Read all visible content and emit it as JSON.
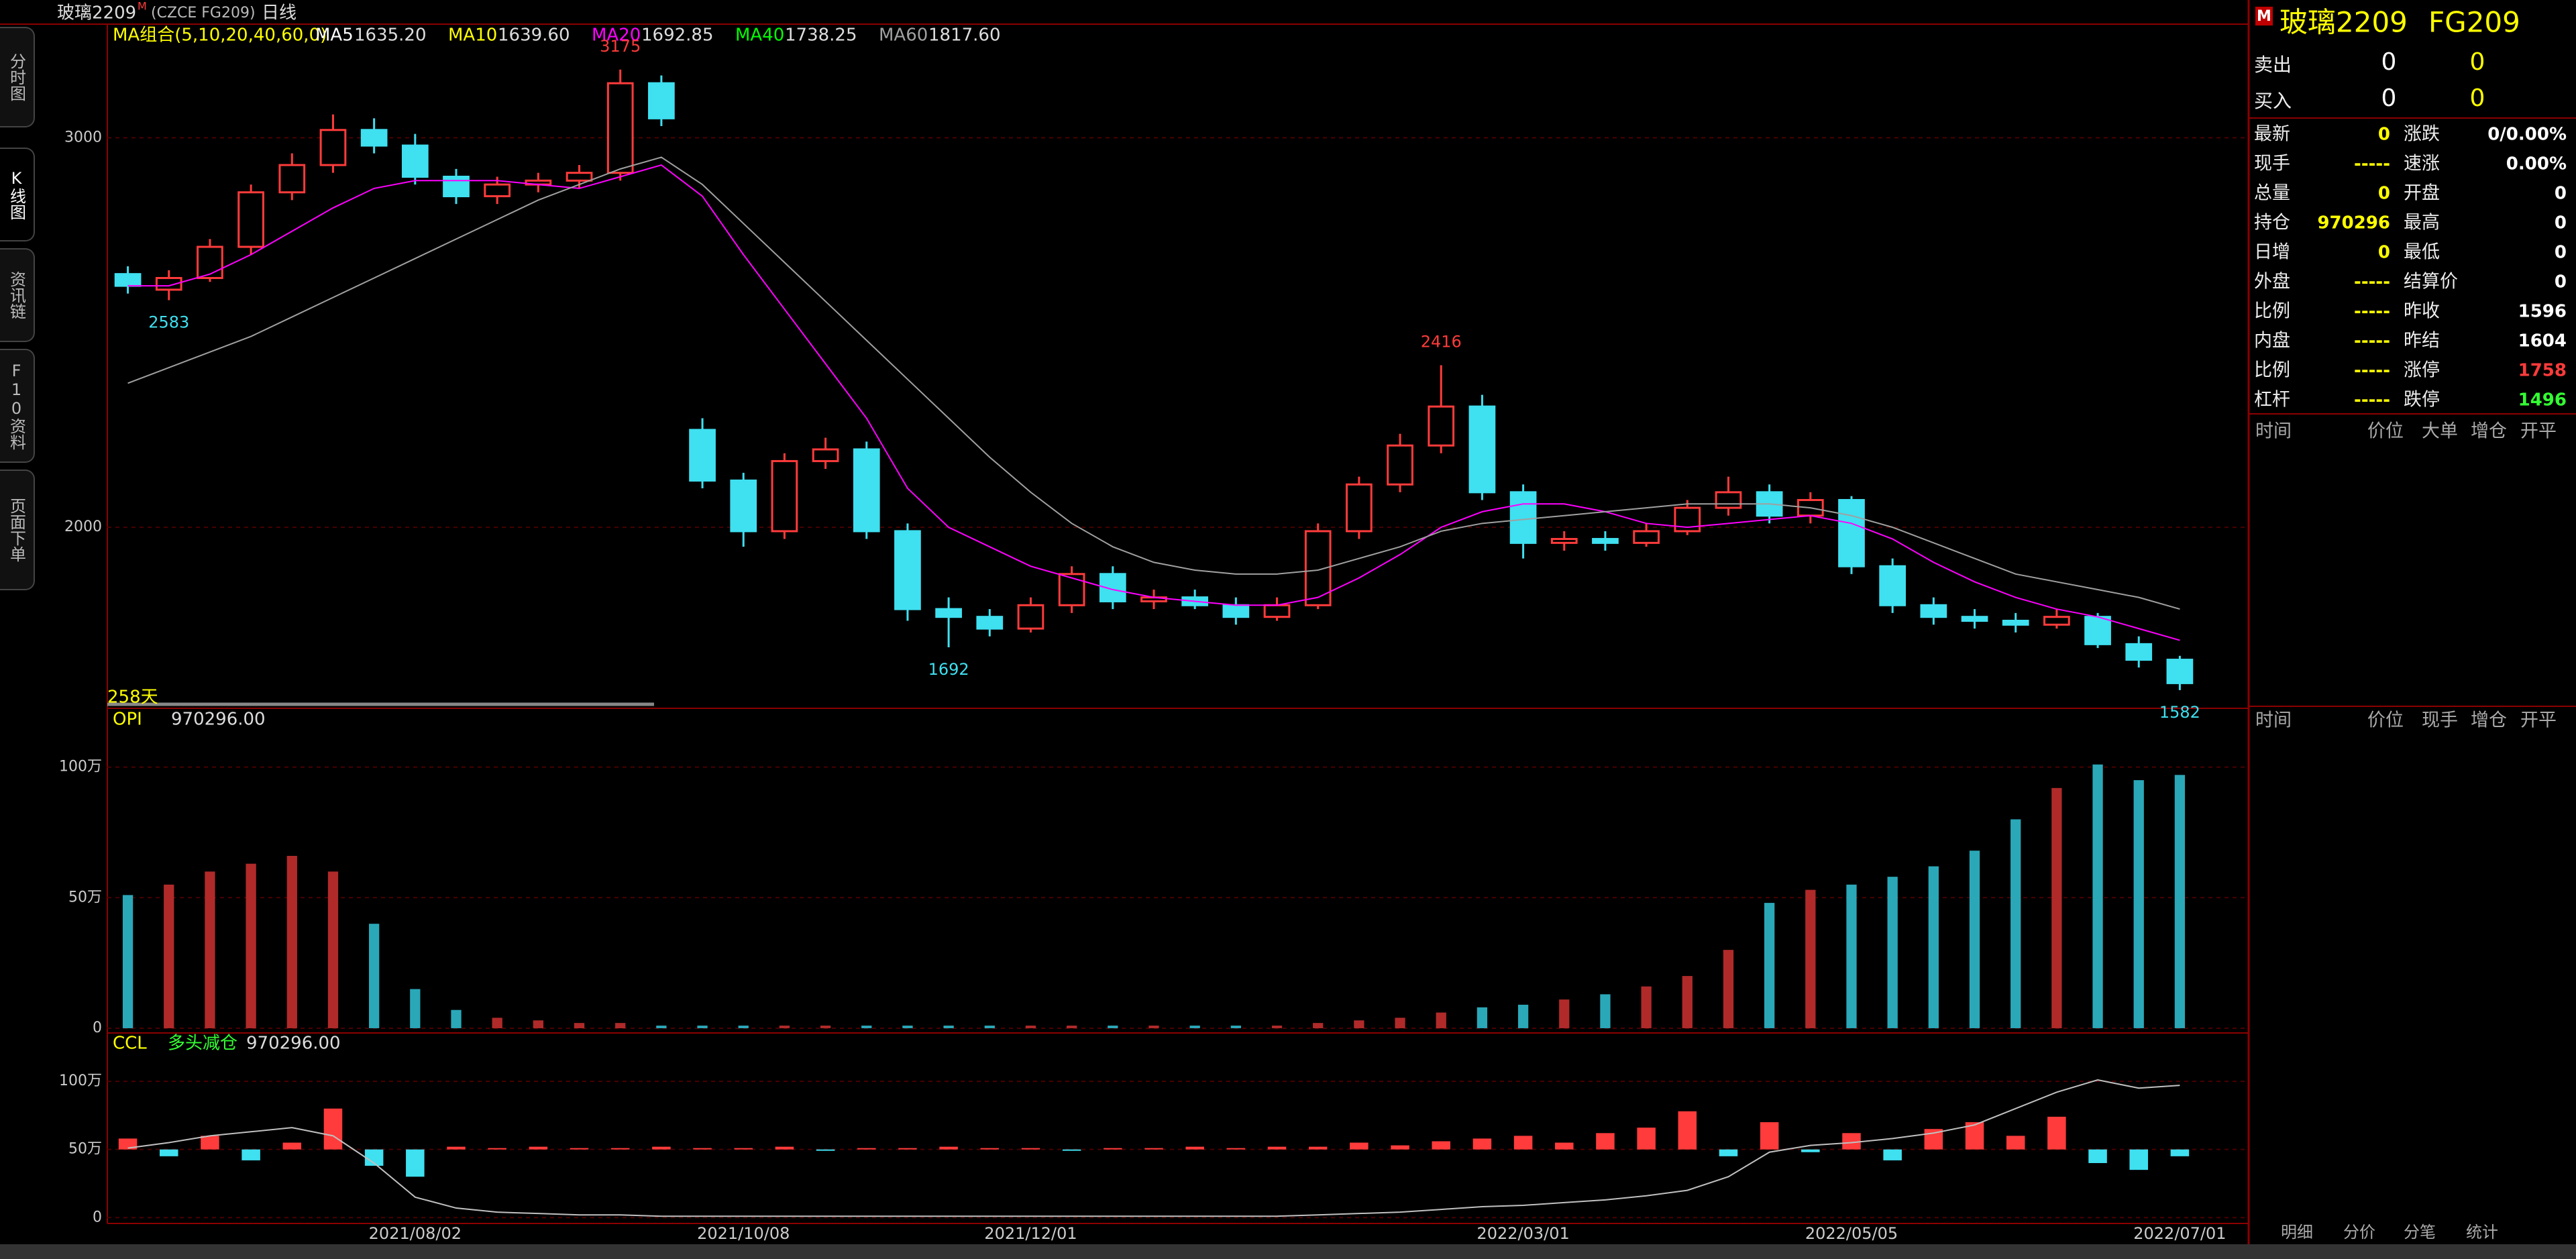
{
  "header": {
    "name": "玻璃2209",
    "mark": "M",
    "code": "(CZCE FG209)",
    "period": "日线"
  },
  "sidebar": [
    "分时图",
    "K线图",
    "资讯链",
    "F10资料",
    "页面下单"
  ],
  "chart_data": {
    "type": "candlestick",
    "legend_title": "MA组合(5,10,20,40,60,0)",
    "ma": [
      {
        "name": "MA5",
        "color": "#ffffff",
        "label": "1635.20"
      },
      {
        "name": "MA10",
        "color": "#ffff00",
        "label": "1639.60"
      },
      {
        "name": "MA20",
        "color": "#ff00ff",
        "label": "1692.85",
        "values": [
          2620,
          2620,
          2650,
          2700,
          2760,
          2820,
          2870,
          2890,
          2890,
          2890,
          2880,
          2870,
          2900,
          2930,
          2850,
          2700,
          2560,
          2420,
          2280,
          2100,
          2000,
          1950,
          1900,
          1870,
          1840,
          1820,
          1810,
          1800,
          1800,
          1820,
          1870,
          1930,
          2000,
          2040,
          2060,
          2060,
          2040,
          2010,
          2000,
          2010,
          2020,
          2030,
          2010,
          1970,
          1910,
          1860,
          1820,
          1790,
          1770,
          1740,
          1710
        ]
      },
      {
        "name": "MA40",
        "color": "#00ff00",
        "label": "1738.25"
      },
      {
        "name": "MA60",
        "color": "#a0a0a0",
        "label": "1817.60",
        "values": [
          2370,
          2410,
          2450,
          2490,
          2540,
          2590,
          2640,
          2690,
          2740,
          2790,
          2840,
          2880,
          2920,
          2950,
          2880,
          2780,
          2680,
          2580,
          2480,
          2380,
          2280,
          2180,
          2090,
          2010,
          1950,
          1910,
          1890,
          1880,
          1880,
          1890,
          1920,
          1950,
          1990,
          2010,
          2020,
          2030,
          2040,
          2050,
          2060,
          2060,
          2060,
          2050,
          2030,
          2000,
          1960,
          1920,
          1880,
          1860,
          1840,
          1820,
          1790
        ]
      }
    ],
    "categories": [
      null,
      null,
      null,
      null,
      null,
      null,
      null,
      "2021/08/02",
      null,
      null,
      null,
      null,
      null,
      null,
      null,
      "2021/10/08",
      null,
      null,
      null,
      null,
      null,
      null,
      "2021/12/01",
      null,
      null,
      null,
      null,
      null,
      null,
      null,
      null,
      null,
      null,
      null,
      "2022/03/01",
      null,
      null,
      null,
      null,
      null,
      null,
      null,
      "2022/05/05",
      null,
      null,
      null,
      null,
      null,
      null,
      null,
      "2022/07/01"
    ],
    "open": [
      2650,
      2610,
      2640,
      2720,
      2860,
      2930,
      3020,
      2980,
      2900,
      2850,
      2880,
      2890,
      2910,
      3140,
      2250,
      2120,
      1990,
      2170,
      2200,
      1990,
      1790,
      1770,
      1740,
      1800,
      1880,
      1810,
      1820,
      1800,
      1770,
      1800,
      1990,
      2110,
      2210,
      2310,
      2090,
      1960,
      1970,
      1960,
      1990,
      2050,
      2090,
      2030,
      2070,
      1900,
      1800,
      1770,
      1760,
      1750,
      1770,
      1700,
      1660
    ],
    "high": [
      2670,
      2660,
      2740,
      2880,
      2960,
      3060,
      3050,
      3010,
      2920,
      2900,
      2910,
      2930,
      3175,
      3160,
      2280,
      2140,
      2190,
      2230,
      2220,
      2010,
      1820,
      1790,
      1820,
      1900,
      1900,
      1840,
      1840,
      1820,
      1820,
      2010,
      2130,
      2240,
      2416,
      2340,
      2110,
      1990,
      1990,
      2010,
      2070,
      2130,
      2110,
      2090,
      2080,
      1920,
      1820,
      1790,
      1780,
      1790,
      1780,
      1720,
      1670
    ],
    "low": [
      2600,
      2583,
      2630,
      2700,
      2840,
      2910,
      2960,
      2880,
      2830,
      2830,
      2860,
      2870,
      2890,
      3030,
      2100,
      1950,
      1970,
      2150,
      1970,
      1760,
      1692,
      1720,
      1730,
      1780,
      1790,
      1790,
      1790,
      1750,
      1760,
      1790,
      1970,
      2090,
      2190,
      2070,
      1920,
      1940,
      1940,
      1950,
      1980,
      2030,
      2010,
      2010,
      1880,
      1780,
      1750,
      1740,
      1730,
      1740,
      1690,
      1640,
      1582
    ],
    "close": [
      2620,
      2640,
      2720,
      2860,
      2930,
      3020,
      2980,
      2900,
      2850,
      2880,
      2890,
      2910,
      3140,
      3050,
      2120,
      1990,
      2170,
      2200,
      1990,
      1790,
      1770,
      1740,
      1800,
      1880,
      1810,
      1820,
      1800,
      1770,
      1800,
      1990,
      2110,
      2210,
      2310,
      2090,
      1960,
      1970,
      1960,
      1990,
      2050,
      2090,
      2030,
      2070,
      1900,
      1800,
      1770,
      1760,
      1750,
      1770,
      1700,
      1660,
      1600
    ],
    "up_color": "#ff3b3b",
    "down_color": "#3fe0f0",
    "ylim": [
      1537,
      3290
    ],
    "yticks": [
      2000,
      3000
    ],
    "grid": true,
    "range_label": "258天",
    "opi": {
      "name": "OPI",
      "label": "970296.00",
      "values": [
        51,
        55,
        60,
        63,
        66,
        60,
        40,
        15,
        7,
        4,
        3,
        2,
        2,
        1,
        1,
        1,
        1,
        1,
        1,
        1,
        1,
        1,
        1,
        1,
        1,
        1,
        1,
        1,
        1,
        2,
        3,
        4,
        6,
        8,
        9,
        11,
        13,
        16,
        20,
        30,
        48,
        53,
        55,
        58,
        62,
        68,
        80,
        92,
        101,
        95,
        97
      ],
      "ylim": [
        -1.3,
        122
      ],
      "yticks": [
        0,
        {
          "value": 50,
          "label": "50万"
        },
        {
          "value": 100,
          "label": "100万"
        }
      ]
    },
    "ccl": {
      "name": "CCL",
      "status": "多头减仓",
      "label": "970296.00",
      "values": [
        58,
        45,
        60,
        42,
        55,
        80,
        38,
        30,
        52,
        51,
        52,
        51,
        51,
        52,
        51,
        51,
        52,
        50,
        51,
        51,
        52,
        51,
        51,
        50,
        51,
        51,
        52,
        51,
        52,
        52,
        55,
        53,
        56,
        58,
        60,
        55,
        62,
        66,
        78,
        45,
        70,
        48,
        62,
        42,
        65,
        70,
        60,
        74,
        40,
        35,
        45
      ],
      "line_color": "#c0c0c0",
      "ylim": [
        -4.3,
        134
      ],
      "yticks": [
        0,
        {
          "value": 50,
          "label": "50万"
        },
        {
          "value": 100,
          "label": "100万"
        }
      ]
    }
  },
  "quote": {
    "mark": "M",
    "name": "玻璃2209",
    "code": "FG209",
    "sell": {
      "label": "卖出",
      "values": [
        0,
        0
      ]
    },
    "buy": {
      "label": "买入",
      "values": [
        0,
        0
      ]
    },
    "rows": [
      {
        "l1": "最新",
        "v1": 0,
        "l2": "涨跌",
        "v2": "0/0.00%"
      },
      {
        "l1": "现手",
        "v1": "-----",
        "l2": "速涨",
        "v2": "0.00%"
      },
      {
        "l1": "总量",
        "v1": 0,
        "l2": "开盘",
        "v2": 0
      },
      {
        "l1": "持仓",
        "v1": 970296,
        "l2": "最高",
        "v2": 0
      },
      {
        "l1": "日增",
        "v1": 0,
        "l2": "最低",
        "v2": 0
      },
      {
        "l1": "外盘",
        "v1": "-----",
        "l2": "结算价",
        "v2": 0
      },
      {
        "l1": "比例",
        "v1": "-----",
        "l2": "昨收",
        "v2": 1596
      },
      {
        "l1": "内盘",
        "v1": "-----",
        "l2": "昨结",
        "v2": 1604
      },
      {
        "l1": "比例",
        "v1": "-----",
        "l2": "涨停",
        "v2": 1758,
        "color2": "#ff3b3b"
      },
      {
        "l1": "杠杆",
        "v1": "-----",
        "l2": "跌停",
        "v2": 1496,
        "color2": "#33ff33"
      }
    ],
    "ticks_header": [
      "时间",
      "价位",
      "大单",
      "增仓",
      "开平"
    ],
    "trades_header": [
      "时间",
      "价位",
      "现手",
      "增仓",
      "开平"
    ],
    "tabs": [
      "明细",
      "分价",
      "分笔",
      "统计"
    ]
  }
}
